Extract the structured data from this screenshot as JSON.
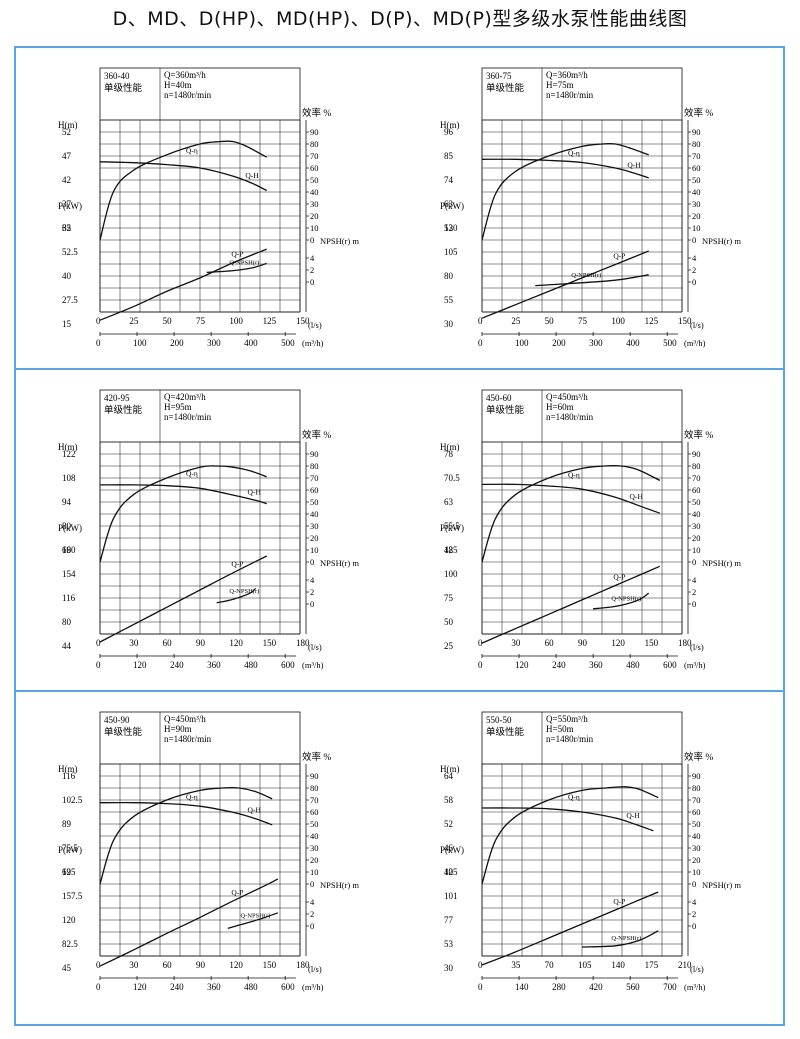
{
  "page": {
    "title": "D、MD、D(HP)、MD(HP)、D(P)、MD(P)型多级水泵性能曲线图"
  },
  "colors": {
    "frame": "#5aa6dc",
    "ink": "#111111",
    "grid": "#222222"
  },
  "common": {
    "h_label": "H(m)",
    "p_label": "P(kW)",
    "eff_label": "效率 %",
    "npsh_label": "NPSH(r) m",
    "qls_unit": "(l/s)",
    "qm3_unit": "(m³/h)",
    "type_label": "单级性能",
    "curve_labels": {
      "qh": "Q-H",
      "qeta": "Q-η",
      "qp": "Q-P",
      "qnpsh": "Q-NPSH(r)"
    }
  },
  "chart_data": [
    {
      "type": "line",
      "model": "360-40",
      "rated": [
        "Q=360m³/h",
        "H=40m",
        "n=1480r/min"
      ],
      "head_ticks": [
        "52",
        "47",
        "42",
        "37",
        "32"
      ],
      "power_ticks": [
        "65",
        "52.5",
        "40",
        "27.5",
        "15"
      ],
      "eff_ticks": [
        "90",
        "80",
        "70",
        "60",
        "50",
        "40",
        "30",
        "20",
        "10",
        "0"
      ],
      "npsh_ticks": [
        "4",
        "2",
        "0"
      ],
      "x_ls_ticks": [
        "0",
        "25",
        "50",
        "75",
        "100",
        "125",
        "150"
      ],
      "x_m3h_ticks": [
        "0",
        "100",
        "200",
        "300",
        "400",
        "500"
      ],
      "xlim_ls": [
        0,
        150
      ],
      "series": [
        {
          "name": "Q-H",
          "x": [
            0,
            25,
            50,
            75,
            100,
            115,
            125
          ],
          "y": [
            45.8,
            45.6,
            45.2,
            44.5,
            42.8,
            41.2,
            39.8
          ]
        },
        {
          "name": "Q-η",
          "x": [
            0,
            10,
            25,
            50,
            75,
            90,
            100,
            110,
            125
          ],
          "y": [
            0,
            40,
            58,
            71,
            80,
            82,
            82,
            78,
            69
          ]
        },
        {
          "name": "Q-P",
          "x": [
            0,
            25,
            50,
            75,
            100,
            125
          ],
          "y": [
            17,
            24,
            32,
            39,
            47,
            54
          ]
        },
        {
          "name": "Q-NPSH(r)",
          "x": [
            80,
            100,
            115,
            125
          ],
          "y": [
            2.6,
            2.9,
            3.4,
            4.1
          ]
        }
      ],
      "curve_labels": {
        "qh": "Q-H",
        "qeta": "Q-η",
        "qp": "Q-P",
        "qnpsh": "Q-NPSH(r)"
      }
    },
    {
      "type": "line",
      "model": "360-75",
      "rated": [
        "Q=360m³/h",
        "H=75m",
        "n=1480r/min"
      ],
      "head_ticks": [
        "96",
        "85",
        "74",
        "63",
        "52"
      ],
      "power_ticks": [
        "130",
        "105",
        "80",
        "55",
        "30"
      ],
      "eff_ticks": [
        "90",
        "80",
        "70",
        "60",
        "50",
        "40",
        "30",
        "20",
        "10",
        "0"
      ],
      "npsh_ticks": [
        "4",
        "2",
        "0"
      ],
      "x_ls_ticks": [
        "0",
        "25",
        "50",
        "75",
        "100",
        "125",
        "150"
      ],
      "x_m3h_ticks": [
        "0",
        "100",
        "200",
        "300",
        "400",
        "500"
      ],
      "xlim_ls": [
        0,
        150
      ],
      "series": [
        {
          "name": "Q-H",
          "x": [
            0,
            25,
            50,
            75,
            100,
            115,
            125
          ],
          "y": [
            83.5,
            83.5,
            83,
            82,
            79.5,
            77,
            75
          ]
        },
        {
          "name": "Q-η",
          "x": [
            0,
            10,
            25,
            50,
            75,
            90,
            100,
            110,
            125
          ],
          "y": [
            0,
            38,
            57,
            70,
            78,
            80,
            80,
            77,
            71
          ]
        },
        {
          "name": "Q-P",
          "x": [
            0,
            25,
            50,
            75,
            100,
            125
          ],
          "y": [
            36,
            50,
            64,
            78,
            92,
            106
          ]
        },
        {
          "name": "Q-NPSH(r)",
          "x": [
            40,
            70,
            100,
            125
          ],
          "y": [
            0.4,
            0.8,
            1.3,
            2.2
          ]
        }
      ],
      "curve_labels": {
        "qh": "Q-H",
        "qeta": "Q-η",
        "qp": "Q-P",
        "qnpsh": "Q-NPSH(r)"
      }
    },
    {
      "type": "line",
      "model": "420-95",
      "rated": [
        "Q=420m³/h",
        "H=95m",
        "n=1480r/min"
      ],
      "head_ticks": [
        "122",
        "108",
        "94",
        "80",
        "66"
      ],
      "power_ticks": [
        "190",
        "154",
        "116",
        "80",
        "44"
      ],
      "eff_ticks": [
        "90",
        "80",
        "70",
        "60",
        "50",
        "40",
        "30",
        "20",
        "10",
        "0"
      ],
      "npsh_ticks": [
        "4",
        "2",
        "0"
      ],
      "x_ls_ticks": [
        "0",
        "30",
        "60",
        "90",
        "120",
        "150",
        "180"
      ],
      "x_m3h_ticks": [
        "0",
        "120",
        "240",
        "360",
        "480",
        "600"
      ],
      "xlim_ls": [
        0,
        180
      ],
      "series": [
        {
          "name": "Q-H",
          "x": [
            0,
            30,
            60,
            90,
            120,
            140,
            150
          ],
          "y": [
            104,
            104,
            103.5,
            102,
            98,
            95,
            93
          ]
        },
        {
          "name": "Q-η",
          "x": [
            0,
            12,
            30,
            60,
            90,
            105,
            120,
            135,
            150
          ],
          "y": [
            0,
            36,
            56,
            70,
            79,
            80,
            79,
            76,
            71
          ]
        },
        {
          "name": "Q-P",
          "x": [
            0,
            30,
            60,
            90,
            120,
            150
          ],
          "y": [
            52,
            78,
            104,
            130,
            156,
            181
          ]
        },
        {
          "name": "Q-NPSH(r)",
          "x": [
            105,
            120,
            135,
            140
          ],
          "y": [
            1.2,
            1.8,
            2.8,
            3.6
          ]
        }
      ],
      "curve_labels": {
        "qh": "Q-H",
        "qeta": "Q-η",
        "qp": "Q-P",
        "qnpsh": "Q-NPSH(r)"
      }
    },
    {
      "type": "line",
      "model": "450-60",
      "rated": [
        "Q=450m³/h",
        "H=60m",
        "n=1480r/min"
      ],
      "head_ticks": [
        "78",
        "70.5",
        "63",
        "55.5",
        "48"
      ],
      "power_ticks": [
        "125",
        "100",
        "75",
        "50",
        "25"
      ],
      "eff_ticks": [
        "90",
        "80",
        "70",
        "60",
        "50",
        "40",
        "30",
        "20",
        "10",
        "0"
      ],
      "npsh_ticks": [
        "4",
        "2",
        "0"
      ],
      "x_ls_ticks": [
        "0",
        "30",
        "60",
        "90",
        "120",
        "150",
        "180"
      ],
      "x_m3h_ticks": [
        "0",
        "120",
        "240",
        "360",
        "480",
        "600"
      ],
      "xlim_ls": [
        0,
        180
      ],
      "series": [
        {
          "name": "Q-H",
          "x": [
            0,
            30,
            60,
            90,
            120,
            140,
            160
          ],
          "y": [
            68.5,
            68.5,
            68,
            67,
            64.5,
            62,
            59.5
          ]
        },
        {
          "name": "Q-η",
          "x": [
            0,
            12,
            30,
            60,
            90,
            110,
            125,
            140,
            160
          ],
          "y": [
            0,
            36,
            56,
            70,
            78,
            80,
            80,
            77,
            68
          ]
        },
        {
          "name": "Q-P",
          "x": [
            0,
            30,
            60,
            90,
            120,
            150,
            160
          ],
          "y": [
            28,
            43,
            58,
            73,
            88,
            103,
            108
          ]
        },
        {
          "name": "Q-NPSH(r)",
          "x": [
            100,
            120,
            140,
            150
          ],
          "y": [
            0.2,
            0.6,
            1.6,
            2.8
          ]
        }
      ],
      "curve_labels": {
        "qh": "Q-H",
        "qeta": "Q-η",
        "qp": "Q-P",
        "qnpsh": "Q-NPSH(r)"
      }
    },
    {
      "type": "line",
      "model": "450-90",
      "rated": [
        "Q=450m³/h",
        "H=90m",
        "n=1480r/min"
      ],
      "head_ticks": [
        "116",
        "102.5",
        "89",
        "75.5",
        "62"
      ],
      "power_ticks": [
        "195",
        "157.5",
        "120",
        "82.5",
        "45"
      ],
      "eff_ticks": [
        "90",
        "80",
        "70",
        "60",
        "50",
        "40",
        "30",
        "20",
        "10",
        "0"
      ],
      "npsh_ticks": [
        "4",
        "2",
        "0"
      ],
      "x_ls_ticks": [
        "0",
        "30",
        "60",
        "90",
        "120",
        "150",
        "180"
      ],
      "x_m3h_ticks": [
        "0",
        "120",
        "240",
        "360",
        "480",
        "600"
      ],
      "xlim_ls": [
        0,
        180
      ],
      "series": [
        {
          "name": "Q-H",
          "x": [
            0,
            30,
            60,
            90,
            120,
            140,
            155
          ],
          "y": [
            101,
            101,
            100.5,
            99,
            95.5,
            92,
            88.5
          ]
        },
        {
          "name": "Q-η",
          "x": [
            0,
            12,
            30,
            60,
            90,
            110,
            125,
            140,
            155
          ],
          "y": [
            0,
            36,
            56,
            70,
            78,
            80,
            80,
            77,
            71
          ]
        },
        {
          "name": "Q-P",
          "x": [
            0,
            30,
            60,
            90,
            120,
            150,
            160
          ],
          "y": [
            48,
            73,
            99,
            124,
            150,
            175,
            184
          ]
        },
        {
          "name": "Q-NPSH(r)",
          "x": [
            115,
            130,
            145,
            160
          ],
          "y": [
            0.6,
            1.4,
            2.2,
            3.2
          ]
        }
      ],
      "curve_labels": {
        "qh": "Q-H",
        "qeta": "Q-η",
        "qp": "Q-P",
        "qnpsh": "Q-NPSH(r)"
      }
    },
    {
      "type": "line",
      "model": "550-50",
      "rated": [
        "Q=550m³/h",
        "H=50m",
        "n=1480r/min"
      ],
      "head_ticks": [
        "64",
        "58",
        "52",
        "46",
        "40"
      ],
      "power_ticks": [
        "125",
        "101",
        "77",
        "53",
        "30"
      ],
      "eff_ticks": [
        "90",
        "80",
        "70",
        "60",
        "50",
        "40",
        "30",
        "20",
        "10",
        "0"
      ],
      "npsh_ticks": [
        "4",
        "2",
        "0"
      ],
      "x_ls_ticks": [
        "0",
        "35",
        "70",
        "105",
        "140",
        "175",
        "210"
      ],
      "x_m3h_ticks": [
        "0",
        "140",
        "280",
        "420",
        "560",
        "700"
      ],
      "xlim_ls": [
        0,
        210
      ],
      "series": [
        {
          "name": "Q-H",
          "x": [
            0,
            35,
            70,
            105,
            140,
            160,
            180
          ],
          "y": [
            56,
            56,
            55.8,
            55,
            53.5,
            52,
            50.3
          ]
        },
        {
          "name": "Q-η",
          "x": [
            0,
            14,
            35,
            70,
            105,
            130,
            150,
            165,
            185
          ],
          "y": [
            0,
            36,
            56,
            70,
            78,
            80,
            81,
            79,
            72
          ]
        },
        {
          "name": "Q-P",
          "x": [
            0,
            35,
            70,
            105,
            140,
            175,
            185
          ],
          "y": [
            32,
            45,
            59,
            73,
            87,
            101,
            105
          ]
        },
        {
          "name": "Q-NPSH(r)",
          "x": [
            105,
            140,
            165,
            185
          ],
          "y": [
            -2.5,
            -2.3,
            -1.4,
            0.2
          ]
        }
      ],
      "curve_labels": {
        "qh": "Q-H",
        "qeta": "Q-η",
        "qp": "Q-P",
        "qnpsh": "Q-NPSH(r)"
      }
    }
  ]
}
